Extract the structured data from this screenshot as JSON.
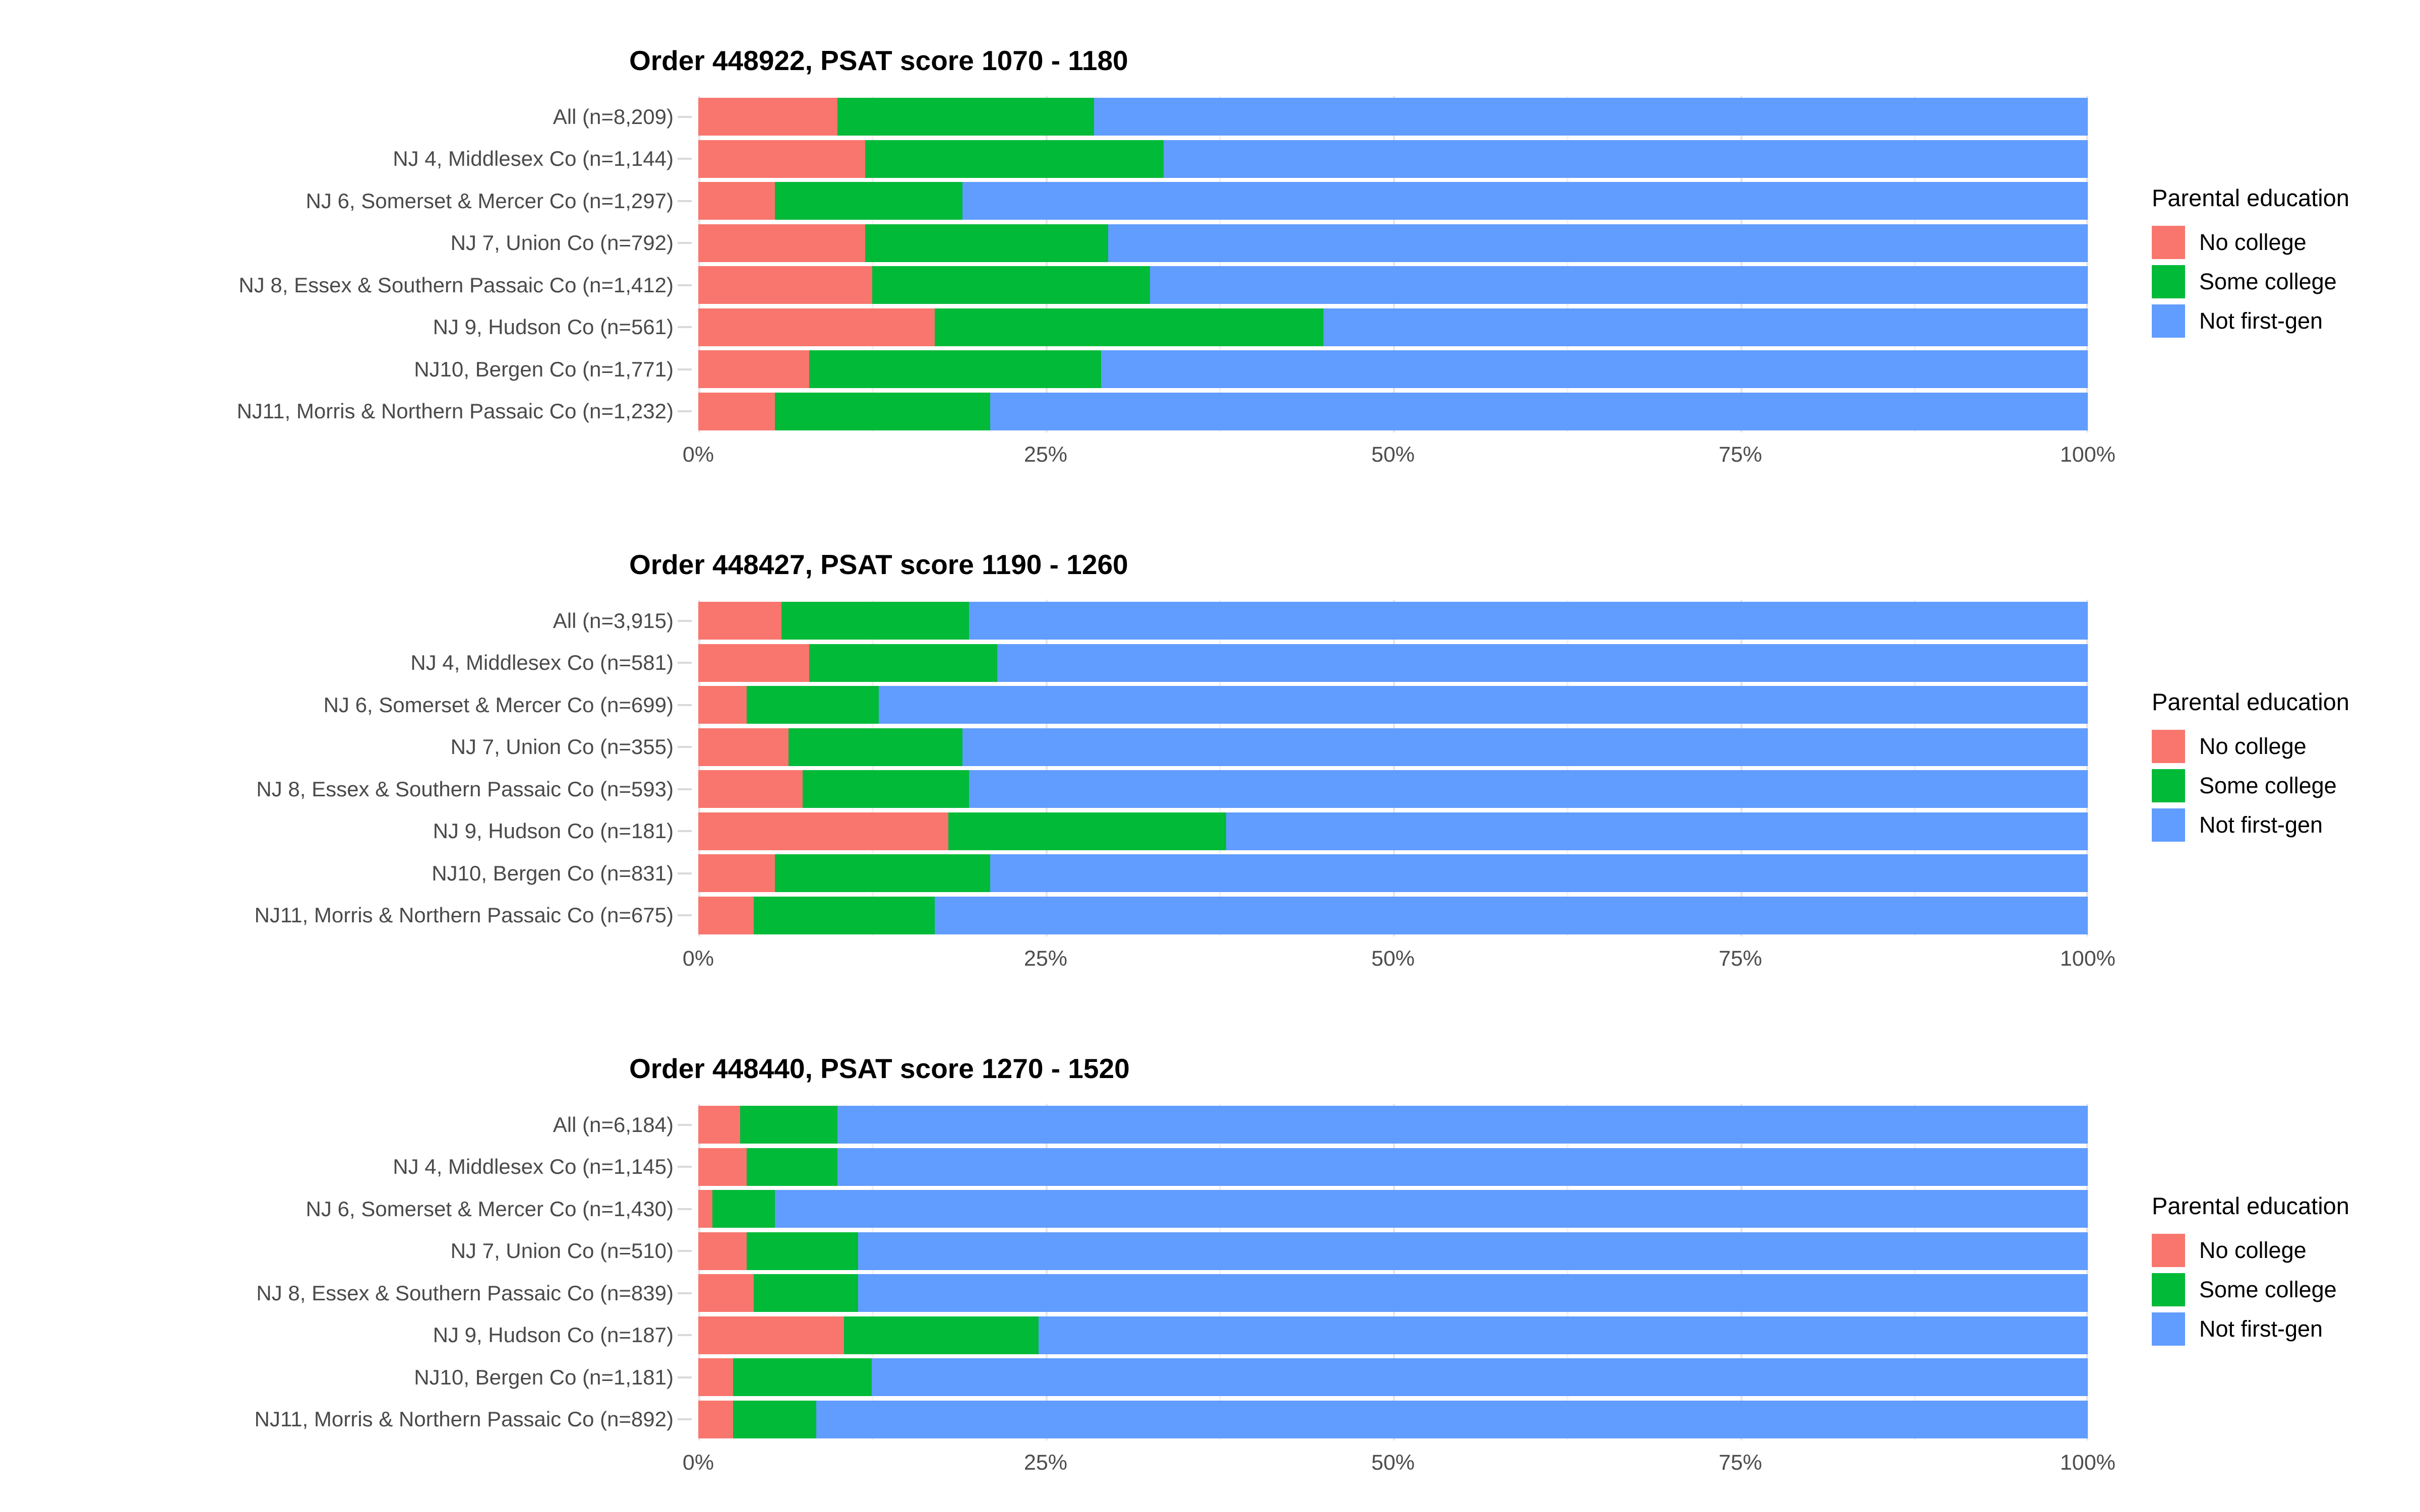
{
  "legend": {
    "title": "Parental education",
    "items": [
      {
        "label": "No college",
        "color": "#F8766D"
      },
      {
        "label": "Some college",
        "color": "#00BA38"
      },
      {
        "label": "Not first-gen",
        "color": "#619CFF"
      }
    ]
  },
  "chart_data": [
    {
      "type": "bar",
      "stacked": true,
      "orientation": "horizontal",
      "units": "percent",
      "title": "Order 448922, PSAT score 1070 - 1180",
      "legend_title": "Parental education",
      "categories": [
        "All (n=8,209)",
        "NJ 4, Middlesex Co (n=1,144)",
        "NJ 6, Somerset & Mercer Co (n=1,297)",
        "NJ 7, Union Co (n=792)",
        "NJ 8, Essex & Southern Passaic Co (n=1,412)",
        "NJ 9, Hudson Co (n=561)",
        "NJ10, Bergen Co (n=1,771)",
        "NJ11, Morris & Northern Passaic Co (n=1,232)"
      ],
      "series": [
        {
          "name": "No college",
          "values": [
            10,
            12,
            5.5,
            12,
            12.5,
            17,
            8,
            5.5
          ]
        },
        {
          "name": "Some college",
          "values": [
            18.5,
            21.5,
            13.5,
            17.5,
            20,
            28,
            21,
            15.5
          ]
        },
        {
          "name": "Not first-gen",
          "values": [
            71.5,
            66.5,
            81,
            70.5,
            67.5,
            55,
            71,
            79
          ]
        }
      ],
      "x_ticks": [
        "0%",
        "25%",
        "50%",
        "75%",
        "100%"
      ],
      "xlim": [
        0,
        100
      ],
      "grid": true
    },
    {
      "type": "bar",
      "stacked": true,
      "orientation": "horizontal",
      "units": "percent",
      "title": "Order 448427, PSAT score 1190 - 1260",
      "legend_title": "Parental education",
      "categories": [
        "All (n=3,915)",
        "NJ 4, Middlesex Co (n=581)",
        "NJ 6, Somerset & Mercer Co (n=699)",
        "NJ 7, Union Co (n=355)",
        "NJ 8, Essex & Southern Passaic Co (n=593)",
        "NJ 9, Hudson Co (n=181)",
        "NJ10, Bergen Co (n=831)",
        "NJ11, Morris & Northern Passaic Co (n=675)"
      ],
      "series": [
        {
          "name": "No college",
          "values": [
            6,
            8,
            3.5,
            6.5,
            7.5,
            18,
            5.5,
            4
          ]
        },
        {
          "name": "Some college",
          "values": [
            13.5,
            13.5,
            9.5,
            12.5,
            12,
            20,
            15.5,
            13
          ]
        },
        {
          "name": "Not first-gen",
          "values": [
            80.5,
            78.5,
            87,
            81,
            80.5,
            62,
            79,
            83
          ]
        }
      ],
      "x_ticks": [
        "0%",
        "25%",
        "50%",
        "75%",
        "100%"
      ],
      "xlim": [
        0,
        100
      ],
      "grid": true
    },
    {
      "type": "bar",
      "stacked": true,
      "orientation": "horizontal",
      "units": "percent",
      "title": "Order 448440, PSAT score 1270 - 1520",
      "legend_title": "Parental education",
      "categories": [
        "All (n=6,184)",
        "NJ 4, Middlesex Co (n=1,145)",
        "NJ 6, Somerset & Mercer Co (n=1,430)",
        "NJ 7, Union Co (n=510)",
        "NJ 8, Essex & Southern Passaic Co (n=839)",
        "NJ 9, Hudson Co (n=187)",
        "NJ10, Bergen Co (n=1,181)",
        "NJ11, Morris & Northern Passaic Co (n=892)"
      ],
      "series": [
        {
          "name": "No college",
          "values": [
            3,
            3.5,
            1,
            3.5,
            4,
            10.5,
            2.5,
            2.5
          ]
        },
        {
          "name": "Some college",
          "values": [
            7,
            6.5,
            4.5,
            8,
            7.5,
            14,
            10,
            6
          ]
        },
        {
          "name": "Not first-gen",
          "values": [
            90,
            90,
            94.5,
            88.5,
            88.5,
            75.5,
            87.5,
            91.5
          ]
        }
      ],
      "x_ticks": [
        "0%",
        "25%",
        "50%",
        "75%",
        "100%"
      ],
      "xlim": [
        0,
        100
      ],
      "grid": true
    }
  ]
}
